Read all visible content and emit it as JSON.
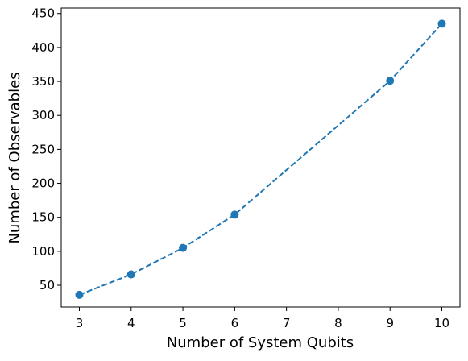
{
  "chart_data": {
    "type": "line",
    "xlabel": "Number of System Qubits",
    "ylabel": "Number of Observables",
    "x": [
      3,
      4,
      5,
      6,
      9,
      10
    ],
    "series": [
      {
        "color": "#1f77b4",
        "values": [
          36,
          66,
          105,
          154,
          351,
          435
        ]
      }
    ],
    "xlim": [
      2.65,
      10.35
    ],
    "ylim": [
      18,
      458
    ],
    "xticks": [
      3,
      4,
      5,
      6,
      7,
      8,
      9,
      10
    ],
    "yticks": [
      50,
      100,
      150,
      200,
      250,
      300,
      350,
      400,
      450
    ],
    "linestyle": "dashed",
    "marker": "circle"
  }
}
